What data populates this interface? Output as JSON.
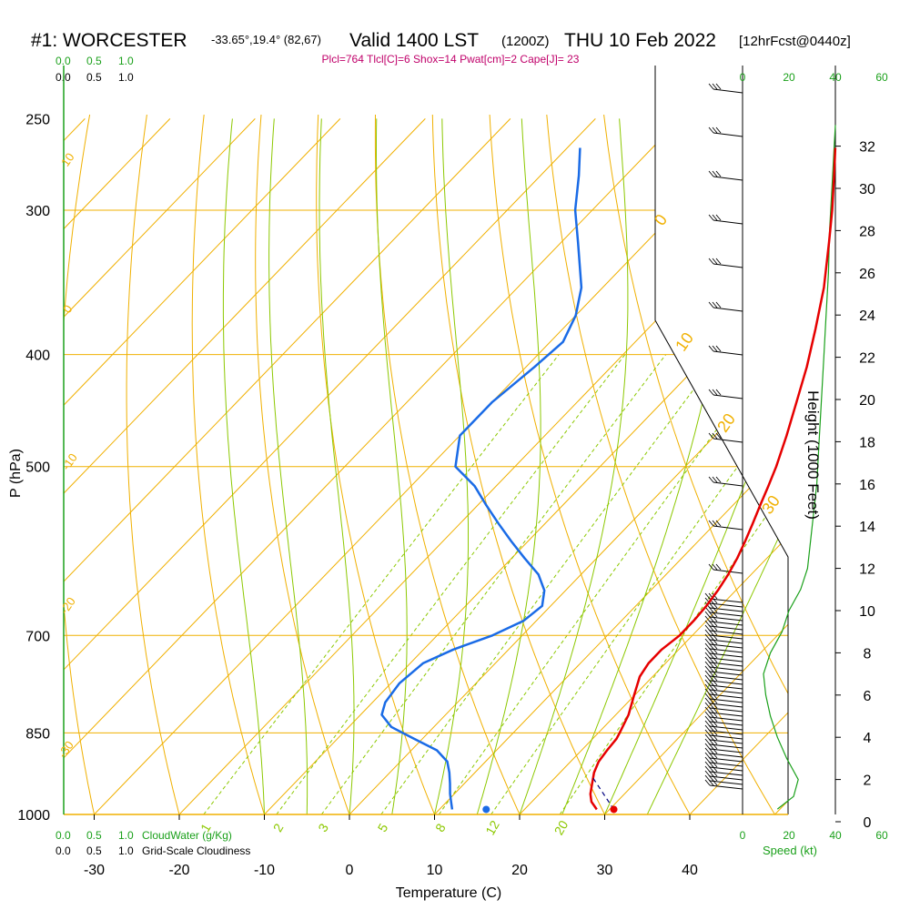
{
  "header": {
    "station": "#1: WORCESTER",
    "coords": "-33.65°,19.4° (82,67)",
    "valid": "Valid 1400 LST",
    "utc": "(1200Z)",
    "date": "THU 10 Feb 2022",
    "forecast": "[12hrFcst@0440z]",
    "indices": "Plcl=764 Tlcl[C]=6 Shox=14 Pwat[cm]=2 Cape[J]= 23"
  },
  "colors": {
    "temperature": "#e60000",
    "dewpoint": "#1a6be6",
    "isotherm": "#f0b000",
    "adiabat": "#8cc800",
    "mixing_ratio": "#8cc800",
    "wind_profile": "#1aa01a",
    "parcel": "#000080",
    "indices_text": "#c0006a"
  },
  "chart_data": {
    "type": "line",
    "title": "#1: WORCESTER -33.65°,19.4° (82,67) Valid 1400 LST (1200Z) THU 10 Feb 2022 [12hrFcst@0440z]",
    "xlabel": "Temperature (C)",
    "ylabel": "P (hPa)",
    "y2label": "Height (1000 Feet)",
    "x_ticks": [
      "-30",
      "-20",
      "-10",
      "0",
      "10",
      "20",
      "30",
      "40"
    ],
    "p_ticks": [
      "250",
      "300",
      "400",
      "500",
      "700",
      "850",
      "1000"
    ],
    "height_ticks": [
      "0",
      "2",
      "4",
      "6",
      "8",
      "10",
      "12",
      "14",
      "16",
      "18",
      "20",
      "22",
      "24",
      "26",
      "28",
      "30",
      "32"
    ],
    "isotherm_labels": [
      "10",
      "0",
      "-10",
      "-20",
      "-30",
      "0",
      "10",
      "20",
      "30"
    ],
    "mixing_ratio_labels": [
      "1",
      "2",
      "3",
      "5",
      "8",
      "12",
      "20"
    ],
    "cloud_scale": [
      "0.0",
      "0.5",
      "1.0"
    ],
    "cloud_water_label": "CloudWater (g/Kg)",
    "cloudiness_label": "Grid-Scale Cloudiness",
    "speed_label": "Speed (kt)",
    "speed_ticks": [
      "0",
      "20",
      "40",
      "60"
    ],
    "xlim": [
      -33,
      48
    ],
    "ylim": [
      1000,
      250
    ],
    "series": [
      {
        "name": "Temperature",
        "p": [
          990,
          975,
          960,
          940,
          920,
          900,
          880,
          860,
          850,
          820,
          790,
          760,
          740,
          720,
          700,
          680,
          660,
          640,
          620,
          600,
          580,
          560,
          540,
          520,
          500,
          470,
          440,
          410,
          380,
          350,
          320,
          300,
          280,
          265
        ],
        "values": [
          28.5,
          27.0,
          26.0,
          25.0,
          24.0,
          23.3,
          23.0,
          22.8,
          22.5,
          21.5,
          20.0,
          18.5,
          18.0,
          18.0,
          18.5,
          18.5,
          18.3,
          17.9,
          17.3,
          16.5,
          15.5,
          14.4,
          13.2,
          12.0,
          10.7,
          8.4,
          5.8,
          3.0,
          -0.3,
          -4.0,
          -8.5,
          -11.8,
          -15.5,
          -18.5
        ]
      },
      {
        "name": "Dewpoint",
        "p": [
          990,
          975,
          960,
          940,
          920,
          900,
          880,
          860,
          850,
          840,
          820,
          800,
          770,
          740,
          720,
          700,
          680,
          660,
          640,
          620,
          600,
          580,
          560,
          540,
          520,
          500,
          470,
          440,
          410,
          390,
          370,
          350,
          320,
          300,
          280,
          265
        ],
        "values": [
          11.5,
          10.5,
          9.5,
          8.3,
          7.0,
          5.5,
          3.0,
          -1.0,
          -3.0,
          -5.0,
          -7.5,
          -8.5,
          -9.0,
          -8.5,
          -6.5,
          -3.5,
          -1.5,
          -1.0,
          -2.5,
          -5.0,
          -8.5,
          -12.0,
          -15.5,
          -19.0,
          -22.5,
          -27.0,
          -30.0,
          -30.0,
          -29.0,
          -28.5,
          -30.0,
          -32.5,
          -38.0,
          -42.0,
          -45.5,
          -48.5
        ]
      }
    ],
    "surface_dewpoint_marker": {
      "p": 990,
      "value": 15.5
    },
    "surface_temperature_marker": {
      "p": 990,
      "value": 30.5
    },
    "parcel_path": {
      "p": [
        990,
        930
      ],
      "values": [
        30.5,
        24.5
      ]
    },
    "wind_speed_profile": {
      "height": [
        0.6,
        1.2,
        2.0,
        3.0,
        4.0,
        5.0,
        6.0,
        7.0,
        8.0,
        9.0,
        10.0,
        11.0,
        12.0,
        14.0,
        16.0,
        18.0,
        20.0,
        22.0,
        24.0,
        26.0,
        28.0,
        30.0,
        32.0,
        33.0
      ],
      "values": [
        15,
        22,
        24,
        19,
        15,
        12,
        10,
        9,
        12,
        17,
        20,
        25,
        28,
        30,
        32,
        33,
        34,
        35,
        36,
        37,
        37.5,
        38.5,
        39.5,
        40
      ]
    }
  }
}
